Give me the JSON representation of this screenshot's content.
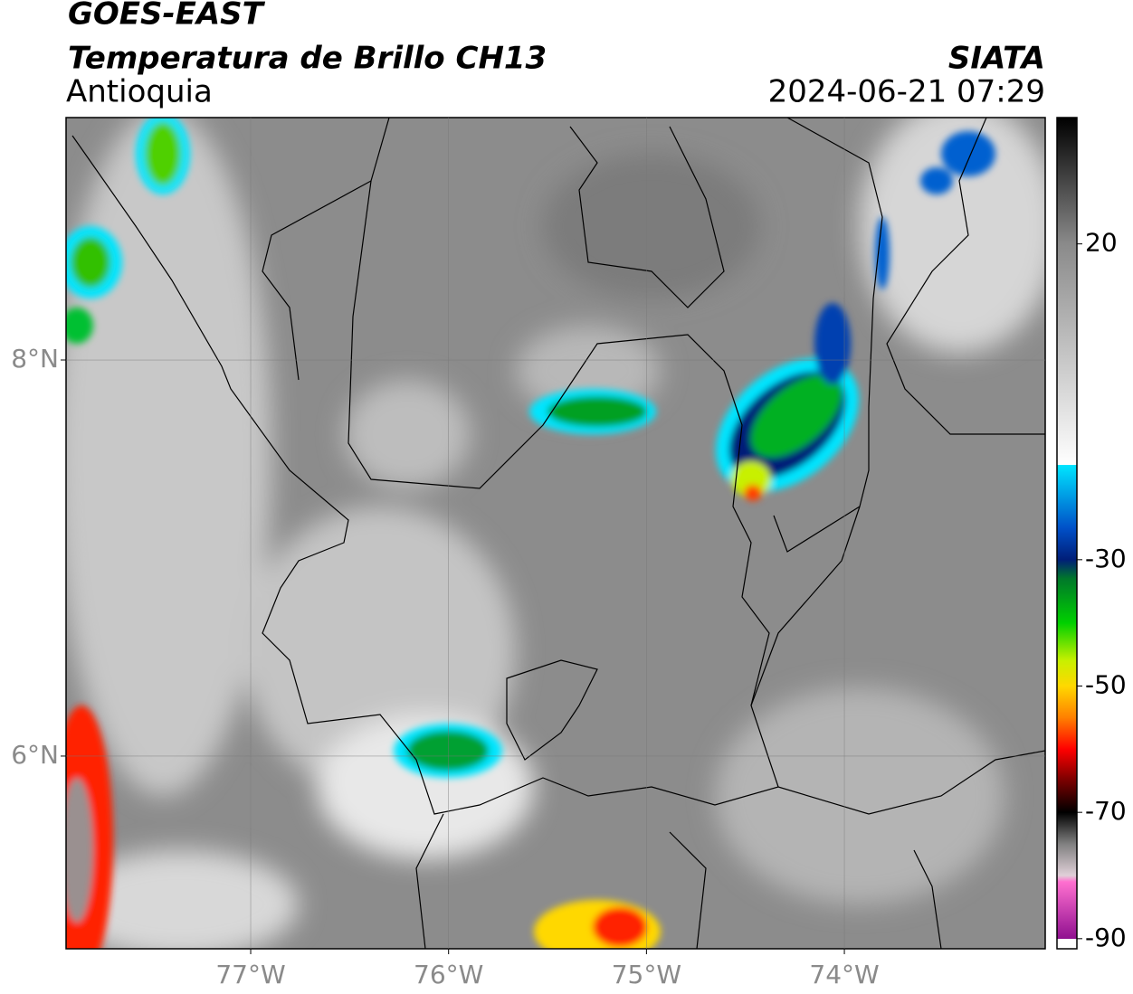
{
  "header": {
    "title": "GOES-EAST",
    "subtitle": "Temperatura de Brillo CH13",
    "region": "Antioquia",
    "source": "SIATA",
    "datetime": "2024-06-21 07:29"
  },
  "map": {
    "xlim": [
      -77.933,
      -72.985
    ],
    "ylim": [
      5.027,
      9.224
    ],
    "xticks": [
      {
        "value": -77,
        "label": "77°W"
      },
      {
        "value": -76,
        "label": "76°W"
      },
      {
        "value": -75,
        "label": "75°W"
      },
      {
        "value": -74,
        "label": "74°W"
      }
    ],
    "yticks": [
      {
        "value": 8,
        "label": "8°N"
      },
      {
        "value": 6,
        "label": "6°N"
      }
    ],
    "grid": true
  },
  "colorbar": {
    "lim": [
      -91.6,
      40
    ],
    "ticks": [
      20,
      -30,
      -50,
      -70,
      -90
    ],
    "colorscale": [
      [
        40,
        "#000000"
      ],
      [
        20,
        "#8a8a8a"
      ],
      [
        -15,
        "#ffffff"
      ],
      [
        -15.01,
        "#00e5ff"
      ],
      [
        -25,
        "#0050c8"
      ],
      [
        -30,
        "#001e78"
      ],
      [
        -33,
        "#00782a"
      ],
      [
        -40,
        "#00d000"
      ],
      [
        -46,
        "#c8f000"
      ],
      [
        -50,
        "#ffd800"
      ],
      [
        -55,
        "#ff8000"
      ],
      [
        -60,
        "#ff0000"
      ],
      [
        -65,
        "#780000"
      ],
      [
        -70,
        "#000000"
      ],
      [
        -75,
        "#808080"
      ],
      [
        -80,
        "#e0d0d8"
      ],
      [
        -81,
        "#ff70d0"
      ],
      [
        -90,
        "#901090"
      ],
      [
        -90.01,
        "#ffffff"
      ]
    ]
  }
}
